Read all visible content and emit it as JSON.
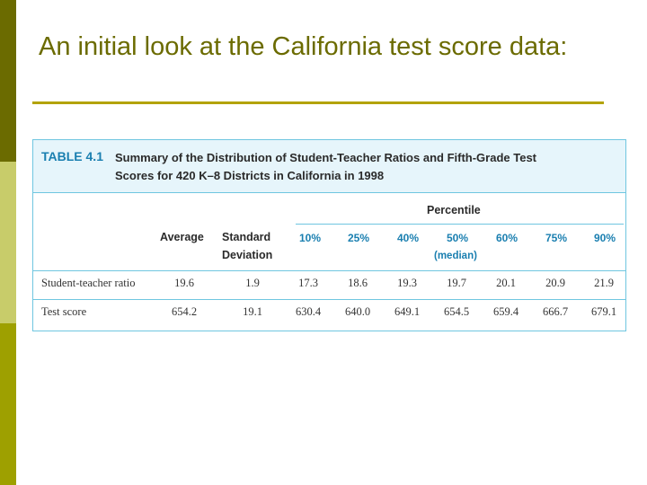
{
  "slide": {
    "title": "An initial look at the California test score data:"
  },
  "table": {
    "label": "TABLE 4.1",
    "caption": "Summary of the Distribution of Student-Teacher Ratios and Fifth-Grade Test Scores for 420 K–8 Districts in California in 1998",
    "headers": {
      "average": "Average",
      "std1": "Standard",
      "std2": "Deviation",
      "percentile": "Percentile",
      "median": "(median)"
    },
    "percentiles": [
      "10%",
      "25%",
      "40%",
      "50%",
      "60%",
      "75%",
      "90%"
    ],
    "rows": [
      {
        "label": "Student-teacher ratio",
        "average": "19.6",
        "std": "1.9",
        "values": [
          "17.3",
          "18.6",
          "19.3",
          "19.7",
          "20.1",
          "20.9",
          "21.9"
        ]
      },
      {
        "label": "Test score",
        "average": "654.2",
        "std": "19.1",
        "values": [
          "630.4",
          "640.0",
          "649.1",
          "654.5",
          "659.4",
          "666.7",
          "679.1"
        ]
      }
    ]
  },
  "colors": {
    "title": "#6b6b00",
    "accent_blue": "#1a7fb0",
    "table_border": "#6fc6e0",
    "header_bg": "#e6f5fb"
  }
}
